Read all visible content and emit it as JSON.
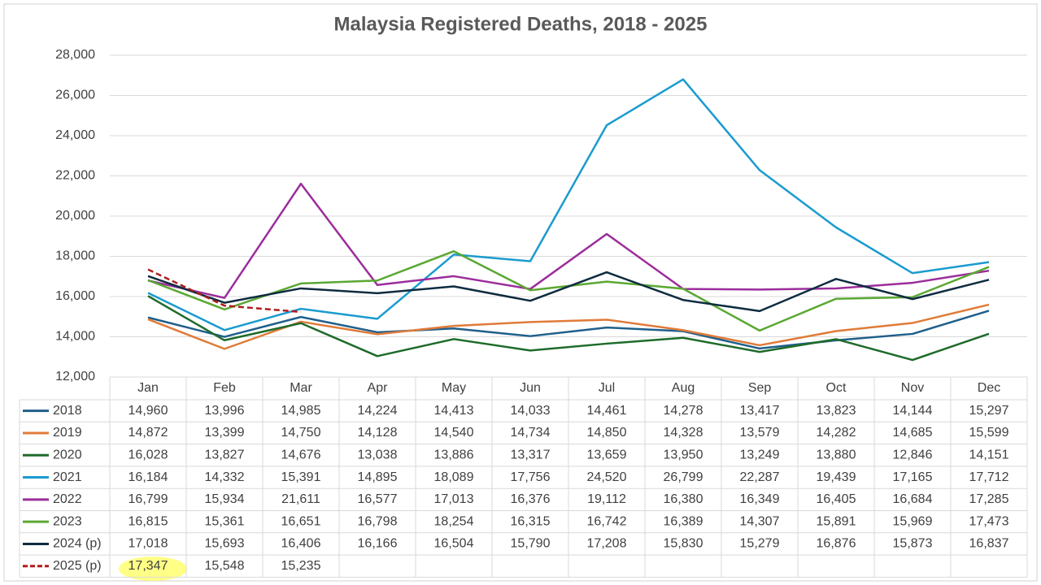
{
  "chart_data": {
    "type": "line",
    "title": "Malaysia Registered Deaths, 2018 - 2025",
    "categories": [
      "Jan",
      "Feb",
      "Mar",
      "Apr",
      "May",
      "Jun",
      "Jul",
      "Aug",
      "Sep",
      "Oct",
      "Nov",
      "Dec"
    ],
    "ylim": [
      12000,
      28000
    ],
    "yticks": [
      {
        "value": 12000,
        "label": "12,000"
      },
      {
        "value": 14000,
        "label": "14,000"
      },
      {
        "value": 16000,
        "label": "16,000"
      },
      {
        "value": 18000,
        "label": "18,000"
      },
      {
        "value": 20000,
        "label": "20,000"
      },
      {
        "value": 22000,
        "label": "22,000"
      },
      {
        "value": 24000,
        "label": "24,000"
      },
      {
        "value": 26000,
        "label": "26,000"
      },
      {
        "value": 28000,
        "label": "28,000"
      }
    ],
    "grid": true,
    "series": [
      {
        "name": "2018",
        "color": "#1f5f8b",
        "values": [
          14960,
          13996,
          14985,
          14224,
          14413,
          14033,
          14461,
          14278,
          13417,
          13823,
          14144,
          15297
        ],
        "value_labels": [
          "14,960",
          "13,996",
          "14,985",
          "14,224",
          "14,413",
          "14,033",
          "14,461",
          "14,278",
          "13,417",
          "13,823",
          "14,144",
          "15,297"
        ]
      },
      {
        "name": "2019",
        "color": "#e07b39",
        "values": [
          14872,
          13399,
          14750,
          14128,
          14540,
          14734,
          14850,
          14328,
          13579,
          14282,
          14685,
          15599
        ],
        "value_labels": [
          "14,872",
          "13,399",
          "14,750",
          "14,128",
          "14,540",
          "14,734",
          "14,850",
          "14,328",
          "13,579",
          "14,282",
          "14,685",
          "15,599"
        ]
      },
      {
        "name": "2020",
        "color": "#1e6b2a",
        "values": [
          16028,
          13827,
          14676,
          13038,
          13886,
          13317,
          13659,
          13950,
          13249,
          13880,
          12846,
          14151
        ],
        "value_labels": [
          "16,028",
          "13,827",
          "14,676",
          "13,038",
          "13,886",
          "13,317",
          "13,659",
          "13,950",
          "13,249",
          "13,880",
          "12,846",
          "14,151"
        ]
      },
      {
        "name": "2021",
        "color": "#1a9bcf",
        "values": [
          16184,
          14332,
          15391,
          14895,
          18089,
          17756,
          24520,
          26799,
          22287,
          19439,
          17165,
          17712
        ],
        "value_labels": [
          "16,184",
          "14,332",
          "15,391",
          "14,895",
          "18,089",
          "17,756",
          "24,520",
          "26,799",
          "22,287",
          "19,439",
          "17,165",
          "17,712"
        ]
      },
      {
        "name": "2022",
        "color": "#9b2d9b",
        "values": [
          16799,
          15934,
          21611,
          16577,
          17013,
          16376,
          19112,
          16380,
          16349,
          16405,
          16684,
          17285
        ],
        "value_labels": [
          "16,799",
          "15,934",
          "21,611",
          "16,577",
          "17,013",
          "16,376",
          "19,112",
          "16,380",
          "16,349",
          "16,405",
          "16,684",
          "17,285"
        ]
      },
      {
        "name": "2023",
        "color": "#5aa832",
        "values": [
          16815,
          15361,
          16651,
          16798,
          18254,
          16315,
          16742,
          16389,
          14307,
          15891,
          15969,
          17473
        ],
        "value_labels": [
          "16,815",
          "15,361",
          "16,651",
          "16,798",
          "18,254",
          "16,315",
          "16,742",
          "16,389",
          "14,307",
          "15,891",
          "15,969",
          "17,473"
        ]
      },
      {
        "name": "2024 (p)",
        "color": "#0e2c40",
        "values": [
          17018,
          15693,
          16406,
          16166,
          16504,
          15790,
          17208,
          15830,
          15279,
          16876,
          15873,
          16837
        ],
        "value_labels": [
          "17,018",
          "15,693",
          "16,406",
          "16,166",
          "16,504",
          "15,790",
          "17,208",
          "15,830",
          "15,279",
          "16,876",
          "15,873",
          "16,837"
        ]
      },
      {
        "name": "2025 (p)",
        "color": "#b01c1c",
        "dashed": true,
        "values": [
          17347,
          15548,
          15235,
          null,
          null,
          null,
          null,
          null,
          null,
          null,
          null,
          null
        ],
        "value_labels": [
          "17,347",
          "15,548",
          "15,235",
          null,
          null,
          null,
          null,
          null,
          null,
          null,
          null,
          null
        ]
      }
    ]
  }
}
